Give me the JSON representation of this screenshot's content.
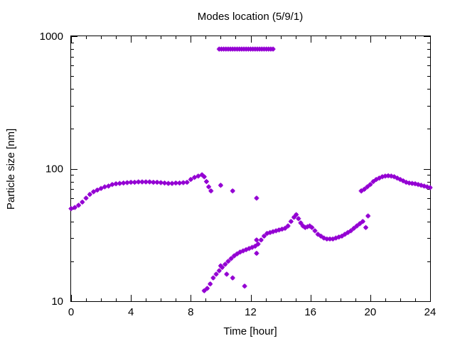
{
  "chart_data": {
    "type": "scatter",
    "title": "Modes location (5/9/1)",
    "xlabel": "Time [hour]",
    "ylabel": "Particle size [nm]",
    "xlim": [
      0,
      24
    ],
    "ylim": [
      10,
      1000
    ],
    "yscale": "log",
    "xticks": [
      0,
      4,
      8,
      12,
      16,
      20,
      24
    ],
    "yticks": [
      10,
      100,
      1000
    ],
    "ytick_labels": [
      "10",
      "100",
      "1000"
    ],
    "marker_color": "#9400d3",
    "grid": false,
    "series": [
      {
        "x": [
          0.0,
          0.25,
          0.5,
          0.75,
          1.0,
          1.25,
          1.5,
          1.75,
          2.0,
          2.25,
          2.5,
          2.75,
          3.0,
          3.25,
          3.5,
          3.75,
          4.0,
          4.25,
          4.5,
          4.75,
          5.0,
          5.25,
          5.5,
          5.75,
          6.0,
          6.25,
          6.5,
          6.75,
          7.0,
          7.25,
          7.5,
          7.75,
          8.0,
          8.25,
          8.5,
          8.75,
          8.9,
          9.05,
          9.2,
          9.35,
          10.0,
          10.8,
          12.4,
          19.4
        ],
        "y": [
          50,
          51,
          53,
          56,
          60,
          64,
          67,
          69,
          71,
          73,
          74,
          76,
          77,
          77.5,
          78,
          78.5,
          79,
          79,
          79.5,
          79.5,
          79.5,
          79.5,
          79,
          79,
          78.5,
          78,
          77.5,
          77.5,
          78,
          78,
          78.5,
          79,
          83,
          86,
          88,
          90,
          87,
          80,
          73,
          68,
          75,
          68,
          60,
          68
        ]
      },
      {
        "x": [
          9.9,
          10.05,
          10.2,
          10.35,
          10.5,
          10.65,
          10.8,
          10.95,
          11.1,
          11.25,
          11.4,
          11.55,
          11.7,
          11.85,
          12.0,
          12.15,
          12.3,
          12.45,
          12.6,
          12.75,
          12.9,
          13.05,
          13.2,
          13.35,
          13.5
        ],
        "y": [
          800,
          800,
          800,
          800,
          800,
          800,
          800,
          800,
          800,
          800,
          800,
          800,
          800,
          800,
          800,
          800,
          800,
          800,
          800,
          800,
          800,
          800,
          800,
          800,
          800
        ]
      },
      {
        "x": [
          8.9,
          9.1,
          9.3,
          9.5,
          9.7,
          9.9,
          10.1,
          10.3,
          10.5,
          10.7,
          10.9,
          11.1,
          11.3,
          11.5,
          11.7,
          11.9,
          12.1,
          12.3,
          12.5,
          12.7,
          12.9,
          13.1,
          13.3,
          13.5,
          13.7,
          13.9,
          14.1,
          14.3,
          14.5,
          14.7,
          14.9,
          15.05,
          15.2,
          15.35,
          15.5,
          15.65,
          15.8,
          15.95,
          16.1,
          16.3,
          16.5,
          16.7,
          16.9,
          17.1,
          17.3,
          17.5,
          17.7,
          17.9,
          18.1,
          18.3,
          18.5,
          18.7,
          18.9,
          19.1,
          19.3,
          19.5,
          19.7,
          19.85,
          10.0,
          10.4,
          10.8,
          11.6,
          12.4,
          12.4
        ],
        "y": [
          12,
          12.5,
          13.5,
          15,
          16,
          17,
          18,
          19,
          20,
          21,
          22,
          22.8,
          23.5,
          24,
          24.5,
          25,
          25.5,
          26,
          27,
          29,
          31,
          32.5,
          33,
          33.5,
          34,
          34.5,
          35,
          35.5,
          37,
          40,
          43,
          45,
          42,
          39,
          37,
          36,
          36.5,
          37,
          36,
          34,
          32,
          31,
          30,
          29.5,
          29.5,
          29.5,
          30,
          30.5,
          31,
          32,
          33,
          34,
          35.5,
          37,
          38.5,
          40,
          36,
          44,
          18.5,
          16,
          15,
          13,
          23,
          29
        ]
      },
      {
        "x": [
          19.4,
          19.6,
          19.8,
          20.0,
          20.2,
          20.4,
          20.6,
          20.8,
          21.0,
          21.2,
          21.4,
          21.6,
          21.8,
          22.0,
          22.2,
          22.4,
          22.6,
          22.8,
          23.0,
          23.2,
          23.4,
          23.6,
          23.8,
          24.0
        ],
        "y": [
          68,
          70,
          73,
          76,
          80,
          83,
          85,
          87,
          88,
          88.5,
          88,
          87,
          85,
          83,
          81,
          79,
          78,
          77.5,
          77,
          76,
          75,
          74,
          73,
          72
        ]
      }
    ]
  }
}
